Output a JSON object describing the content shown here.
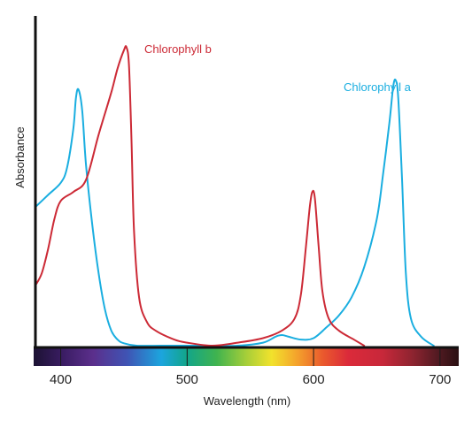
{
  "chart_data": {
    "type": "line",
    "title": "",
    "xlabel": "Wavelength (nm)",
    "ylabel": "Absorbance",
    "x_range": [
      380,
      705
    ],
    "y_range": [
      0,
      1
    ],
    "x_ticks": [
      {
        "value": 400,
        "label": "400"
      },
      {
        "value": 500,
        "label": "500"
      },
      {
        "value": 600,
        "label": "600"
      },
      {
        "value": 700,
        "label": "700"
      }
    ],
    "y_ticks": [],
    "grid": false,
    "spectrum_bar": true,
    "series": [
      {
        "name": "Chlorophyll a",
        "color": "#1aaee0",
        "points": [
          [
            380,
            0.46
          ],
          [
            390,
            0.5
          ],
          [
            400,
            0.54
          ],
          [
            405,
            0.59
          ],
          [
            410,
            0.72
          ],
          [
            412,
            0.82
          ],
          [
            414,
            0.85
          ],
          [
            417,
            0.78
          ],
          [
            420,
            0.6
          ],
          [
            425,
            0.4
          ],
          [
            430,
            0.24
          ],
          [
            435,
            0.12
          ],
          [
            440,
            0.05
          ],
          [
            445,
            0.02
          ],
          [
            450,
            0.008
          ],
          [
            460,
            0.0
          ],
          [
            480,
            0.0
          ],
          [
            500,
            0.0
          ],
          [
            520,
            0.0
          ],
          [
            540,
            0.0
          ],
          [
            560,
            0.01
          ],
          [
            570,
            0.03
          ],
          [
            575,
            0.035
          ],
          [
            580,
            0.03
          ],
          [
            590,
            0.02
          ],
          [
            600,
            0.025
          ],
          [
            610,
            0.06
          ],
          [
            620,
            0.1
          ],
          [
            630,
            0.16
          ],
          [
            640,
            0.26
          ],
          [
            650,
            0.42
          ],
          [
            655,
            0.57
          ],
          [
            660,
            0.74
          ],
          [
            663,
            0.86
          ],
          [
            665,
            0.88
          ],
          [
            667,
            0.82
          ],
          [
            670,
            0.55
          ],
          [
            673,
            0.24
          ],
          [
            677,
            0.09
          ],
          [
            685,
            0.03
          ],
          [
            695,
            0.0
          ]
        ]
      },
      {
        "name": "Chlorophyll b",
        "color": "#cc2a36",
        "points": [
          [
            380,
            0.2
          ],
          [
            385,
            0.24
          ],
          [
            390,
            0.32
          ],
          [
            395,
            0.42
          ],
          [
            400,
            0.48
          ],
          [
            410,
            0.51
          ],
          [
            420,
            0.55
          ],
          [
            430,
            0.7
          ],
          [
            440,
            0.84
          ],
          [
            445,
            0.92
          ],
          [
            450,
            0.98
          ],
          [
            452,
            0.99
          ],
          [
            454,
            0.93
          ],
          [
            456,
            0.68
          ],
          [
            458,
            0.38
          ],
          [
            462,
            0.16
          ],
          [
            468,
            0.08
          ],
          [
            475,
            0.05
          ],
          [
            490,
            0.02
          ],
          [
            500,
            0.01
          ],
          [
            520,
            0.0
          ],
          [
            540,
            0.01
          ],
          [
            560,
            0.025
          ],
          [
            575,
            0.05
          ],
          [
            585,
            0.09
          ],
          [
            590,
            0.17
          ],
          [
            594,
            0.33
          ],
          [
            597,
            0.46
          ],
          [
            599,
            0.51
          ],
          [
            601,
            0.49
          ],
          [
            604,
            0.33
          ],
          [
            607,
            0.18
          ],
          [
            612,
            0.09
          ],
          [
            620,
            0.05
          ],
          [
            632,
            0.02
          ],
          [
            640,
            0.0
          ]
        ]
      }
    ],
    "annotations": [
      {
        "text": "Chlorophyll b",
        "series": "Chlorophyll b"
      },
      {
        "text": "Chlorophyll a",
        "series": "Chlorophyll a"
      }
    ]
  }
}
